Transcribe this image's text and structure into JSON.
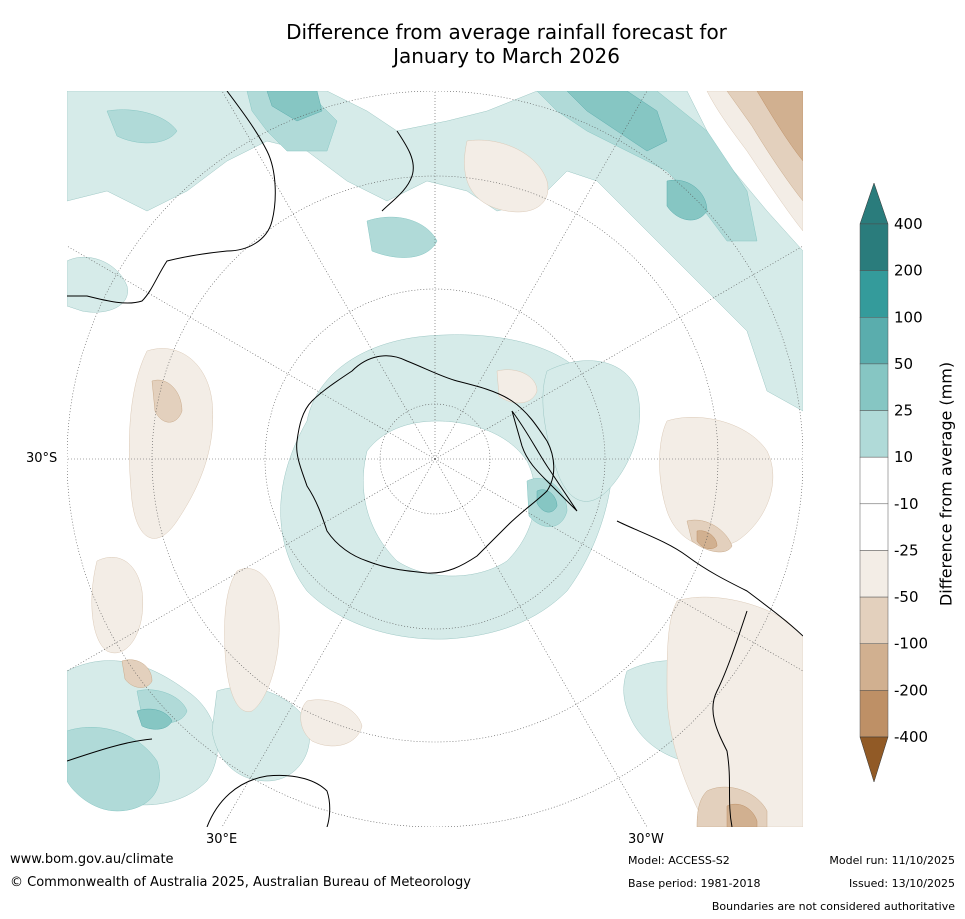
{
  "title": {
    "line1": "Difference from average rainfall forecast for",
    "line2": "January to March 2026"
  },
  "map": {
    "projection": "south-polar-stereographic",
    "lat_label": "30°S",
    "lon_labels": {
      "east": "30°E",
      "west": "30°W"
    }
  },
  "legend": {
    "title": "Difference from average (mm)",
    "bins": [
      {
        "label": "400",
        "color": "#2a7c7c"
      },
      {
        "label": "200",
        "color": "#349b9b"
      },
      {
        "label": "100",
        "color": "#5aadad"
      },
      {
        "label": "50",
        "color": "#86c6c3"
      },
      {
        "label": "25",
        "color": "#b0dad8"
      },
      {
        "label": "10",
        "color": "#d6ebe9"
      },
      {
        "label": "-10",
        "color": "#ffffff"
      },
      {
        "label": "-25",
        "color": "#f3ede6"
      },
      {
        "label": "-50",
        "color": "#e3d0bd"
      },
      {
        "label": "-100",
        "color": "#d1b090"
      },
      {
        "label": "-200",
        "color": "#be9066"
      },
      {
        "label": "-400",
        "color": "#a9703f"
      }
    ],
    "arrow_top_color": "#2a7c7c",
    "arrow_bottom_color": "#915a26"
  },
  "footer": {
    "website": "www.bom.gov.au/climate",
    "copyright": "© Commonwealth of Australia 2025, Australian Bureau of Meteorology",
    "model": "Model: ACCESS-S2",
    "base_period": "Base period: 1981-2018",
    "model_run": "Model run: 11/10/2025",
    "issued": "Issued: 13/10/2025",
    "disclaimer": "Boundaries are not considered authoritative"
  }
}
